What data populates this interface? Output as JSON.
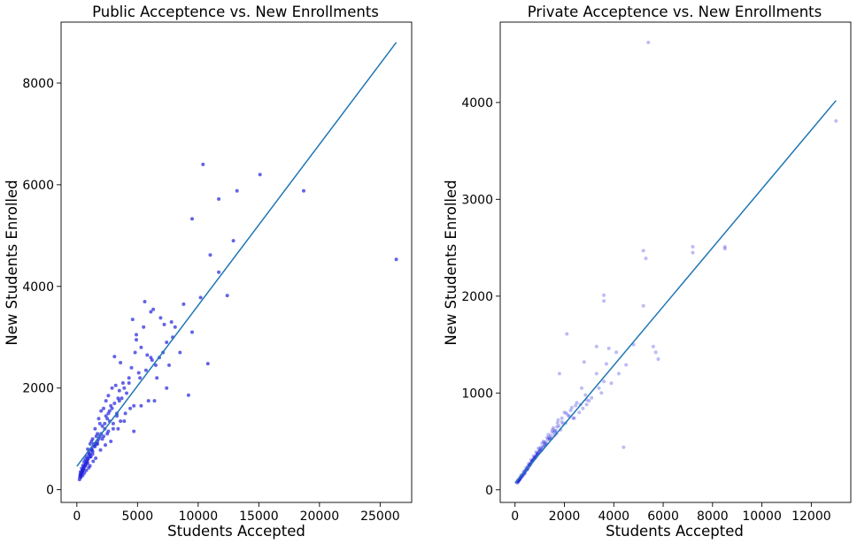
{
  "chart_data": [
    {
      "type": "scatter",
      "title": "Public Acceptence vs. New Enrollments",
      "xlabel": "Students Accepted",
      "ylabel": "New Students Enrolled",
      "xlim": [
        -1300,
        27600
      ],
      "ylim": [
        -250,
        9200
      ],
      "xticks": [
        0,
        5000,
        10000,
        15000,
        20000,
        25000
      ],
      "yticks": [
        0,
        2000,
        4000,
        6000,
        8000
      ],
      "point_color": "#2222dd",
      "point_opacity": 0.7,
      "line_color": "#1f77b4",
      "regression_line": [
        [
          0,
          460
        ],
        [
          26330,
          8800
        ]
      ],
      "grid": false,
      "x": [
        26330,
        10400,
        15100,
        13200,
        18700,
        11700,
        9500,
        12900,
        11000,
        11700,
        10200,
        12400,
        10800,
        9200,
        5600,
        6100,
        6300,
        8800,
        9500,
        4600,
        5500,
        4900,
        6900,
        5800,
        7200,
        7800,
        7400,
        6100,
        5300,
        8100,
        7900,
        6500,
        4500,
        3100,
        4800,
        5200,
        3600,
        4900,
        4300,
        3800,
        3900,
        3200,
        3500,
        2900,
        3400,
        2600,
        3100,
        2400,
        2800,
        2200,
        2600,
        2000,
        2400,
        1800,
        1900,
        2100,
        1500,
        1700,
        1300,
        1600,
        1100,
        1200,
        900,
        1000,
        800,
        700,
        600,
        500,
        400,
        300,
        350,
        4700,
        3300,
        2700,
        3000,
        2300,
        2500,
        2100,
        1900,
        1700,
        1400,
        1200,
        1000,
        1500,
        1300,
        1100,
        900,
        800,
        700,
        600,
        500,
        450,
        350,
        250,
        6200,
        6800,
        7600,
        7100,
        8500,
        5700,
        4300,
        5100,
        3700,
        4100,
        3500,
        2900,
        2700,
        3300,
        2500,
        2300,
        2000,
        1800,
        1600,
        1400,
        1250,
        1050,
        950,
        850,
        750,
        650,
        550,
        450,
        380,
        300,
        220,
        5900,
        6600,
        4400,
        4000,
        3600,
        3000,
        2600,
        2200,
        1700,
        1300,
        1150,
        880,
        720,
        560,
        420,
        280,
        7400,
        6400,
        5300,
        4700,
        3900,
        3400,
        2800,
        2350,
        1950,
        1550,
        1350,
        1080,
        980,
        780,
        620,
        480,
        330
      ],
      "y": [
        4530,
        6400,
        6200,
        5880,
        5880,
        5720,
        5330,
        4900,
        4620,
        4280,
        3780,
        3820,
        2480,
        1860,
        3700,
        3500,
        3550,
        3650,
        3100,
        3350,
        3200,
        3050,
        3380,
        2650,
        3250,
        3300,
        2900,
        2600,
        2800,
        3200,
        3000,
        2450,
        2400,
        2620,
        2700,
        2200,
        2500,
        2950,
        2200,
        2100,
        2000,
        2050,
        1950,
        2000,
        1800,
        1850,
        1700,
        1750,
        1650,
        1600,
        1500,
        1550,
        1450,
        1400,
        1300,
        1250,
        1200,
        1100,
        1000,
        1050,
        900,
        950,
        800,
        700,
        650,
        600,
        550,
        480,
        420,
        350,
        280,
        1650,
        1500,
        1350,
        1200,
        1300,
        1100,
        1000,
        1050,
        950,
        900,
        800,
        750,
        850,
        700,
        650,
        600,
        550,
        500,
        450,
        400,
        350,
        300,
        250,
        2550,
        2600,
        2450,
        2700,
        2700,
        2350,
        2100,
        2300,
        1800,
        1900,
        1750,
        1600,
        1550,
        1450,
        1400,
        1200,
        1100,
        1000,
        900,
        850,
        780,
        700,
        620,
        560,
        520,
        460,
        420,
        380,
        330,
        280,
        200,
        1750,
        2200,
        1600,
        1500,
        1350,
        1300,
        1150,
        1050,
        900,
        750,
        650,
        520,
        480,
        400,
        360,
        300,
        2000,
        1750,
        1650,
        1150,
        1350,
        1200,
        950,
        880,
        780,
        620,
        560,
        470,
        430,
        380,
        330,
        280,
        240
      ]
    },
    {
      "type": "scatter",
      "title": "Private Acceptence vs. New Enrollments",
      "xlabel": "Students Accepted",
      "ylabel": "New Students Enrolled",
      "xlim": [
        -600,
        13600
      ],
      "ylim": [
        -130,
        4830
      ],
      "xticks": [
        0,
        2000,
        4000,
        6000,
        8000,
        10000,
        12000
      ],
      "yticks": [
        0,
        1000,
        2000,
        3000,
        4000
      ],
      "point_color": "#2222dd",
      "point_opacity": 0.3,
      "line_color": "#1f77b4",
      "regression_line": [
        [
          0,
          70
        ],
        [
          13000,
          4020
        ]
      ],
      "grid": false,
      "x": [
        5400,
        13000,
        8500,
        8500,
        7200,
        7200,
        5200,
        5300,
        3600,
        3600,
        5600,
        5800,
        5200,
        5700,
        4800,
        3800,
        3300,
        4500,
        4400,
        2100,
        2800,
        3600,
        4100,
        3900,
        3300,
        2700,
        3000,
        2500,
        2300,
        2900,
        1800,
        2000,
        2400,
        2200,
        1900,
        1700,
        1500,
        1300,
        1100,
        1600,
        1400,
        1200,
        1000,
        900,
        800,
        700,
        600,
        500,
        400,
        300,
        200,
        150,
        100,
        1750,
        1550,
        1350,
        1150,
        950,
        850,
        750,
        650,
        550,
        450,
        350,
        250,
        180,
        120,
        80,
        2600,
        2150,
        1950,
        1650,
        1450,
        1250,
        1050,
        980,
        880,
        780,
        680,
        580,
        480,
        380,
        280,
        220,
        160,
        3100,
        2750,
        2350,
        2050,
        1850,
        1680,
        1480,
        1280,
        1080,
        920,
        820,
        720,
        620,
        520,
        420,
        320,
        260,
        140,
        110,
        3400,
        2450,
        1780,
        1580,
        1380,
        1180,
        1020,
        860,
        760,
        660,
        560,
        460,
        360,
        240,
        190,
        130,
        2900,
        2250,
        1720,
        1420,
        1220,
        1120,
        940,
        840,
        740,
        640,
        540,
        440,
        340,
        230,
        170,
        90,
        4200,
        3500,
        2650,
        1900,
        1620,
        1330,
        1060,
        910,
        810,
        710,
        610,
        510,
        410,
        310,
        210,
        140,
        3700,
        2850,
        2080,
        1520,
        1190,
        990,
        890,
        790,
        690,
        590,
        490,
        390,
        290,
        195,
        125
      ],
      "y": [
        4620,
        3810,
        2510,
        2490,
        2510,
        2450,
        2470,
        2390,
        2010,
        1950,
        1480,
        1350,
        1900,
        1420,
        1500,
        1460,
        1480,
        1290,
        440,
        1610,
        1320,
        1120,
        1420,
        1100,
        1200,
        1050,
        920,
        900,
        850,
        880,
        1200,
        800,
        740,
        760,
        700,
        650,
        600,
        540,
        480,
        560,
        520,
        460,
        420,
        380,
        340,
        300,
        260,
        220,
        180,
        150,
        110,
        90,
        70,
        720,
        640,
        570,
        500,
        430,
        390,
        350,
        310,
        270,
        230,
        190,
        150,
        120,
        100,
        80,
        800,
        770,
        680,
        610,
        560,
        490,
        440,
        400,
        360,
        330,
        290,
        250,
        210,
        170,
        140,
        120,
        100,
        950,
        840,
        740,
        690,
        620,
        580,
        530,
        470,
        410,
        370,
        330,
        300,
        270,
        240,
        200,
        160,
        130,
        100,
        90,
        1050,
        870,
        660,
        590,
        540,
        450,
        400,
        350,
        320,
        280,
        250,
        210,
        180,
        140,
        110,
        90,
        930,
        820,
        690,
        530,
        470,
        440,
        380,
        340,
        310,
        270,
        230,
        200,
        160,
        130,
        100,
        80,
        1200,
        1000,
        880,
        740,
        610,
        520,
        420,
        370,
        330,
        300,
        260,
        220,
        190,
        150,
        120,
        95,
        1300,
        980,
        790,
        620,
        490,
        400,
        360,
        320,
        290,
        250,
        210,
        170,
        140,
        115,
        85
      ]
    }
  ]
}
